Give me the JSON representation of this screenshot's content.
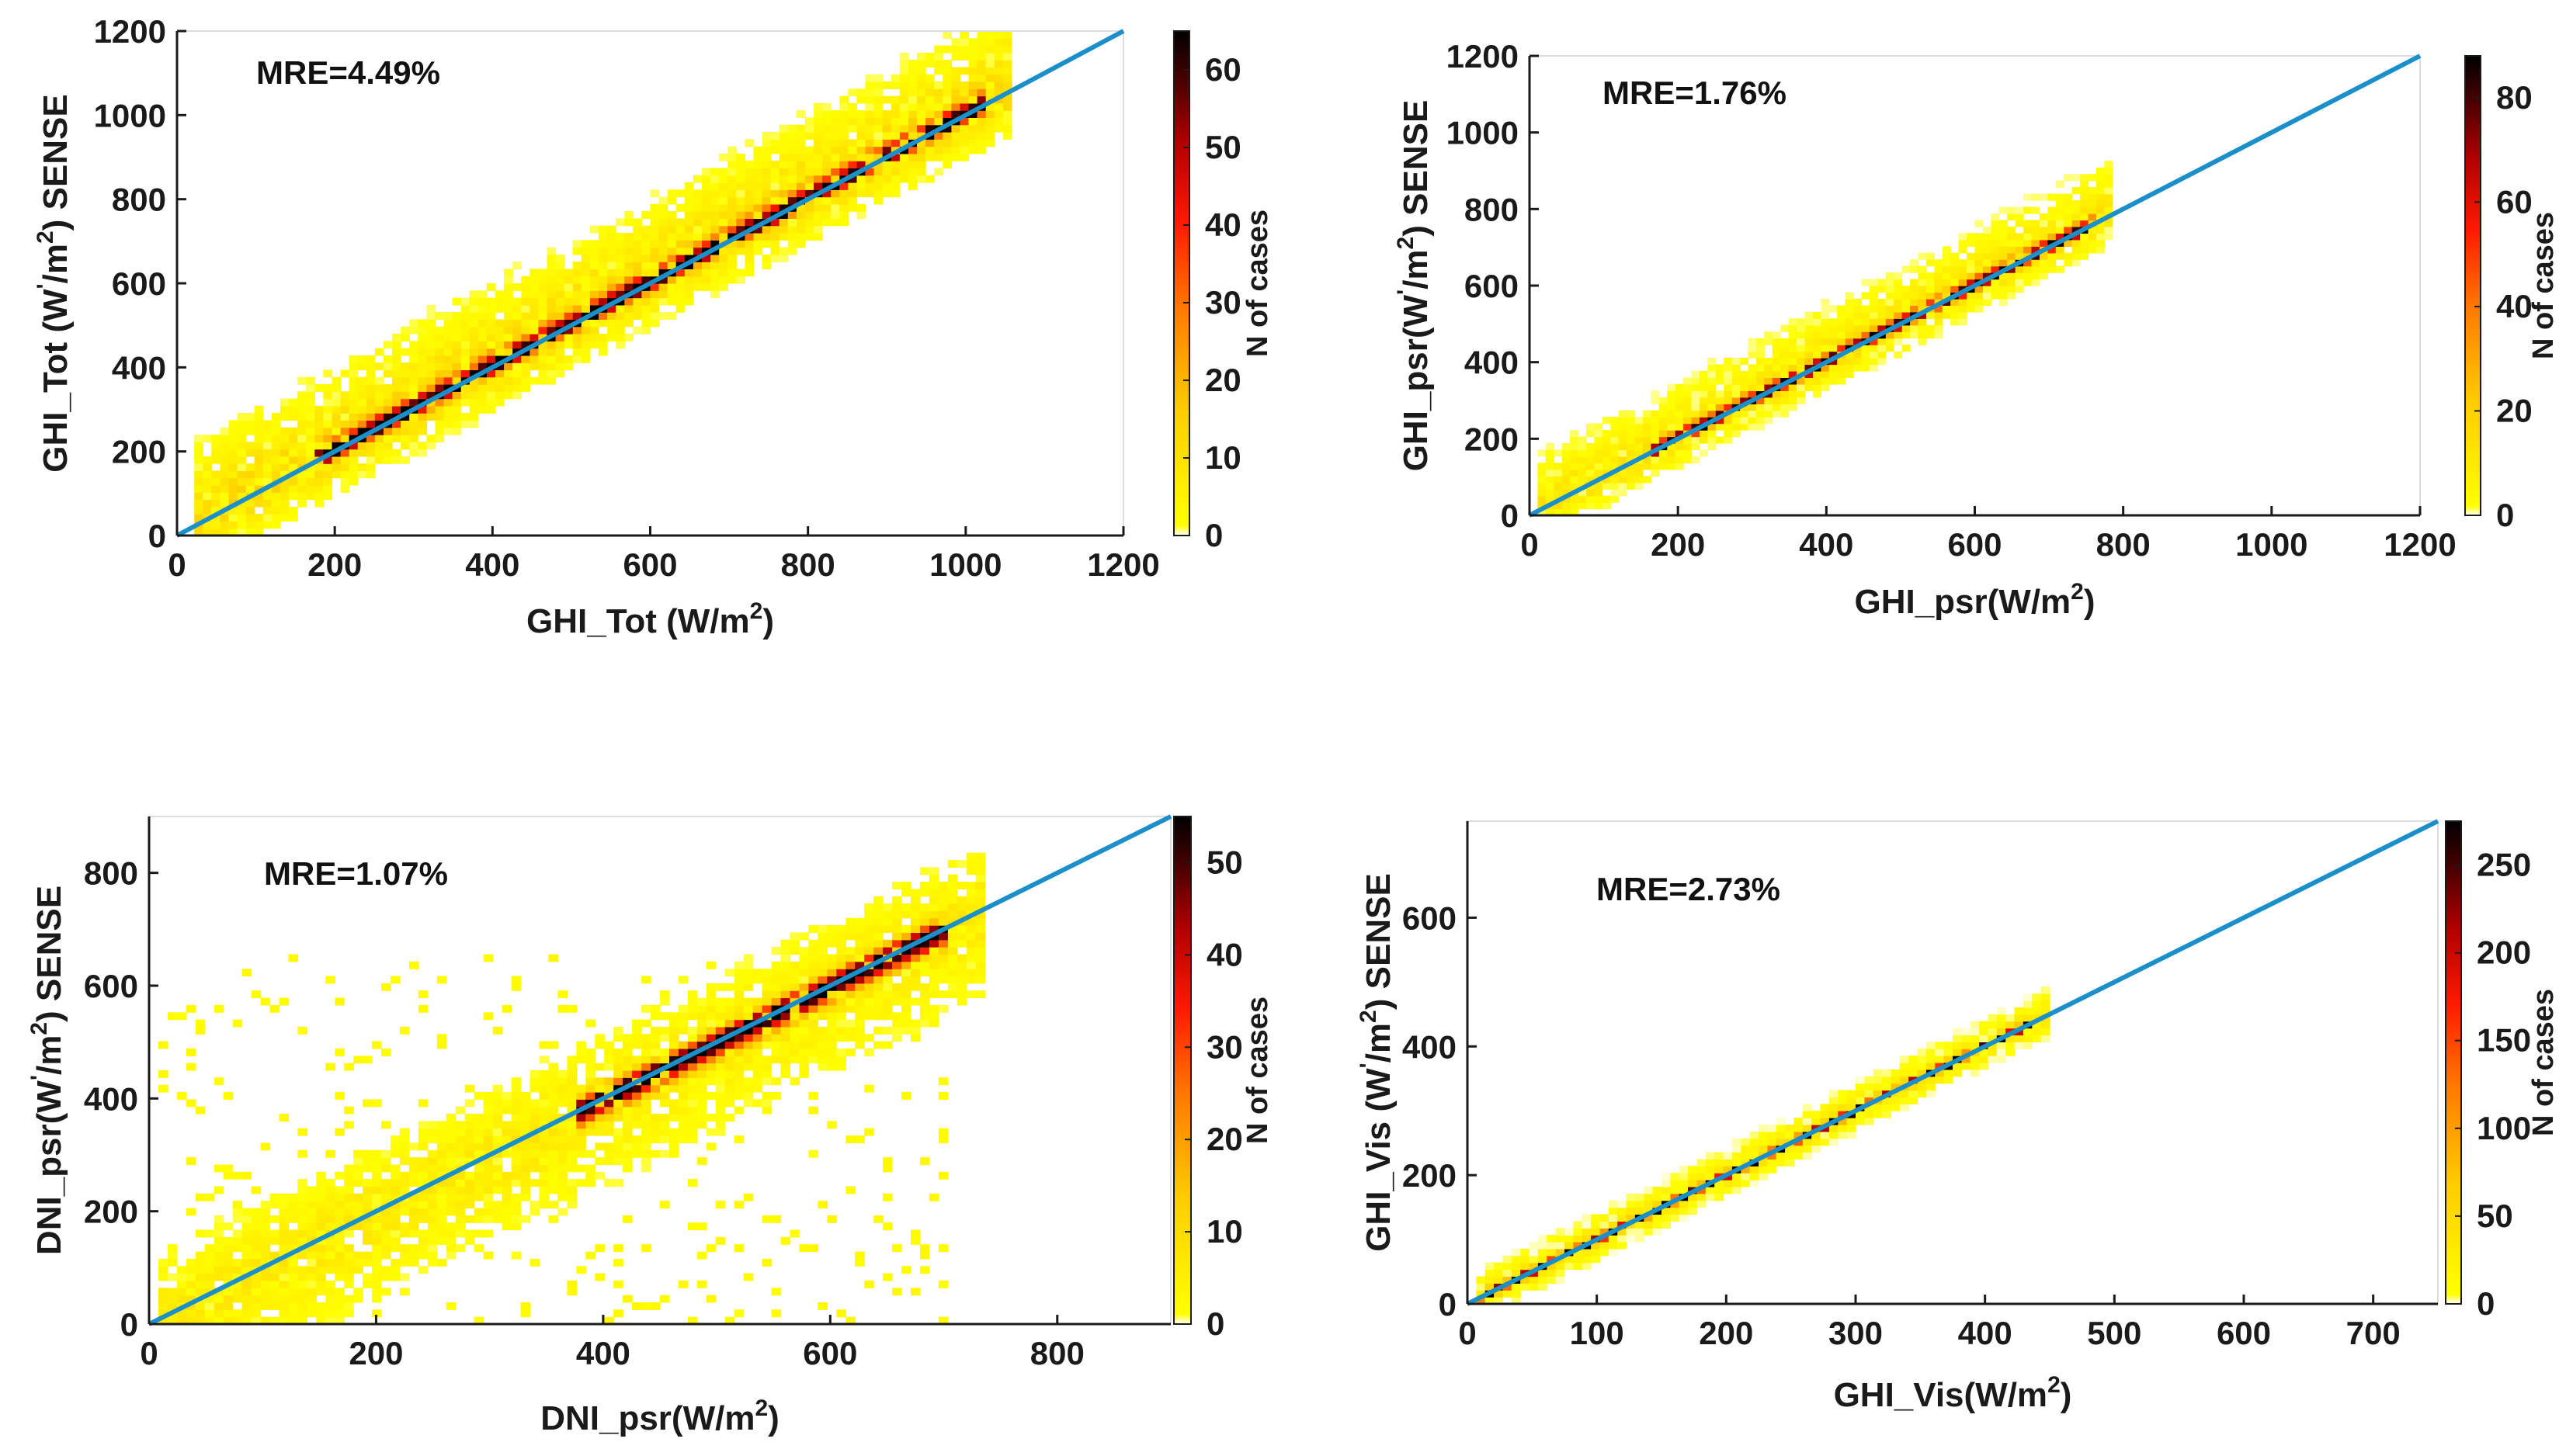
{
  "colors": {
    "identity_line": "#1a8fc9",
    "axis": "#1a1a1a",
    "colormap": [
      "#ffffff",
      "#ffff00",
      "#ffcc00",
      "#ff7a00",
      "#ff1a00",
      "#b00000",
      "#4a0000",
      "#000000"
    ]
  },
  "chart_data": [
    {
      "type": "heatmap",
      "id": "p1",
      "annotation": "MRE=4.49%",
      "xlabel": {
        "main": "GHI_Tot (W/m",
        "sup": "2",
        "tail": ")"
      },
      "ylabel": {
        "main": "GHI_Tot (W",
        "mid": "/m",
        "sup": "2",
        "tail": ") SENSE"
      },
      "xlim": [
        0,
        1200
      ],
      "ylim": [
        0,
        1200
      ],
      "xticks": [
        0,
        200,
        400,
        600,
        800,
        1000,
        1200
      ],
      "yticks": [
        0,
        200,
        400,
        600,
        800,
        1000,
        1200
      ],
      "colorbar": {
        "label": "N of cases",
        "range": [
          0,
          65
        ],
        "ticks": [
          0,
          10,
          20,
          30,
          40,
          50,
          60
        ]
      },
      "identity_line": [
        [
          0,
          0
        ],
        [
          1200,
          1200
        ]
      ],
      "distribution": {
        "x_range": [
          20,
          1060
        ],
        "ridge_x_range": [
          170,
          1030
        ],
        "spread_up": 230,
        "spread_down": 120,
        "peak": 62,
        "halo": 12
      }
    },
    {
      "type": "heatmap",
      "id": "p2",
      "annotation": "MRE=1.76%",
      "xlabel": {
        "main": "GHI_psr(W/m",
        "sup": "2",
        "tail": ")"
      },
      "ylabel": {
        "main": "GHI_psr(W",
        "mid": "/m",
        "sup": "2",
        "tail": ") SENSE"
      },
      "xlim": [
        0,
        1200
      ],
      "ylim": [
        0,
        1200
      ],
      "xticks": [
        0,
        200,
        400,
        600,
        800,
        1000,
        1200
      ],
      "yticks": [
        0,
        200,
        400,
        600,
        800,
        1000,
        1200
      ],
      "colorbar": {
        "label": "N of cases",
        "range": [
          0,
          88
        ],
        "ticks": [
          0,
          20,
          40,
          60,
          80
        ]
      },
      "identity_line": [
        [
          0,
          0
        ],
        [
          1200,
          1200
        ]
      ],
      "distribution": {
        "x_range": [
          10,
          790
        ],
        "ridge_x_range": [
          160,
          760
        ],
        "spread_up": 170,
        "spread_down": 90,
        "peak": 85,
        "halo": 12
      }
    },
    {
      "type": "heatmap",
      "id": "p3",
      "annotation": "MRE=1.07%",
      "xlabel": {
        "main": "DNI_psr(W/m",
        "sup": "2",
        "tail": ")"
      },
      "ylabel": {
        "main": "DNI_psr(W",
        "mid": "/m",
        "sup": "2",
        "tail": ") SENSE"
      },
      "xlim": [
        0,
        900
      ],
      "ylim": [
        0,
        900
      ],
      "xticks": [
        0,
        200,
        400,
        600,
        800
      ],
      "yticks": [
        0,
        200,
        400,
        600,
        800
      ],
      "colorbar": {
        "label": "N of cases",
        "range": [
          0,
          55
        ],
        "ticks": [
          0,
          10,
          20,
          30,
          40,
          50
        ]
      },
      "identity_line": [
        [
          0,
          0
        ],
        [
          900,
          900
        ]
      ],
      "distribution": {
        "x_range": [
          10,
          740
        ],
        "ridge_x_range": [
          380,
          700
        ],
        "spread_up": 150,
        "spread_down": 200,
        "peak": 55,
        "halo": 6
      }
    },
    {
      "type": "heatmap",
      "id": "p4",
      "annotation": "MRE=2.73%",
      "xlabel": {
        "main": "GHI_Vis(W/m",
        "sup": "2",
        "tail": ")"
      },
      "ylabel": {
        "main": "GHI_Vis (W",
        "mid": "/m",
        "sup": "2",
        "tail": ") SENSE"
      },
      "xlim": [
        0,
        750
      ],
      "ylim": [
        0,
        750
      ],
      "xticks": [
        0,
        100,
        200,
        300,
        400,
        500,
        600,
        700
      ],
      "yticks": [
        0,
        200,
        400,
        600
      ],
      "colorbar": {
        "label": "N of cases",
        "range": [
          0,
          275
        ],
        "ticks": [
          0,
          50,
          100,
          150,
          200,
          250
        ]
      },
      "identity_line": [
        [
          0,
          0
        ],
        [
          750,
          750
        ]
      ],
      "distribution": {
        "x_range": [
          5,
          450
        ],
        "ridge_x_range": [
          5,
          445
        ],
        "spread_up": 45,
        "spread_down": 35,
        "peak": 270,
        "halo": 40
      }
    }
  ]
}
